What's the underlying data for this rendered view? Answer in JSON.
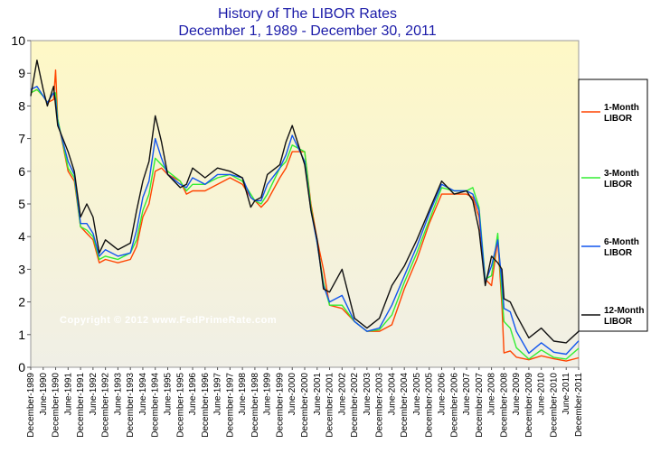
{
  "chart_data": {
    "type": "line",
    "title": "History of The LIBOR Rates",
    "subtitle": "December 1, 1989 - December 30, 2011",
    "watermark": "Copyright © 2012 www.FedPrimeRate.com",
    "ylim": [
      0,
      10
    ],
    "y_ticks": [
      "0",
      "1",
      "2",
      "3",
      "4",
      "5",
      "6",
      "7",
      "8",
      "9",
      "10"
    ],
    "x_ticks": [
      "December-1989",
      "June-1990",
      "December-1990",
      "June-1991",
      "December-1991",
      "June-1992",
      "December-1992",
      "June-1993",
      "December-1993",
      "June-1994",
      "December-1994",
      "June-1995",
      "December-1995",
      "June-1996",
      "December-1996",
      "June-1997",
      "December-1997",
      "June-1998",
      "December-1998",
      "June-1999",
      "December-1999",
      "June-2000",
      "December-2000",
      "June-2001",
      "December-2001",
      "June-2002",
      "December-2002",
      "June-2003",
      "December-2003",
      "June-2004",
      "December-2004",
      "June-2005",
      "December-2005",
      "June-2006",
      "December-2006",
      "June-2007",
      "December-2007",
      "June-2008",
      "December-2008",
      "June-2009",
      "December-2009",
      "June-2010",
      "December-2010",
      "June-2011",
      "December-2011"
    ],
    "grid": false,
    "legend_position": "right",
    "series": [
      {
        "name": "1-Month LIBOR",
        "color": "#ff4400",
        "points": [
          [
            "1989-12",
            8.4
          ],
          [
            "1990-03",
            8.5
          ],
          [
            "1990-06",
            8.3
          ],
          [
            "1990-08",
            8.1
          ],
          [
            "1990-11",
            8.2
          ],
          [
            "1990-12",
            9.1
          ],
          [
            "1991-01",
            7.6
          ],
          [
            "1991-06",
            6.0
          ],
          [
            "1991-09",
            5.7
          ],
          [
            "1991-12",
            4.3
          ],
          [
            "1992-03",
            4.1
          ],
          [
            "1992-06",
            3.9
          ],
          [
            "1992-09",
            3.2
          ],
          [
            "1992-12",
            3.3
          ],
          [
            "1993-06",
            3.2
          ],
          [
            "1993-12",
            3.3
          ],
          [
            "1994-03",
            3.7
          ],
          [
            "1994-06",
            4.6
          ],
          [
            "1994-09",
            5.0
          ],
          [
            "1994-12",
            6.0
          ],
          [
            "1995-03",
            6.1
          ],
          [
            "1995-06",
            5.9
          ],
          [
            "1995-12",
            5.7
          ],
          [
            "1996-03",
            5.3
          ],
          [
            "1996-06",
            5.4
          ],
          [
            "1996-12",
            5.4
          ],
          [
            "1997-06",
            5.6
          ],
          [
            "1997-12",
            5.8
          ],
          [
            "1998-06",
            5.6
          ],
          [
            "1998-10",
            5.2
          ],
          [
            "1998-12",
            5.1
          ],
          [
            "1999-03",
            4.9
          ],
          [
            "1999-06",
            5.1
          ],
          [
            "1999-12",
            5.8
          ],
          [
            "2000-03",
            6.1
          ],
          [
            "2000-06",
            6.6
          ],
          [
            "2000-12",
            6.6
          ],
          [
            "2001-03",
            5.0
          ],
          [
            "2001-06",
            3.9
          ],
          [
            "2001-09",
            3.0
          ],
          [
            "2001-12",
            1.9
          ],
          [
            "2002-06",
            1.8
          ],
          [
            "2002-12",
            1.4
          ],
          [
            "2003-06",
            1.1
          ],
          [
            "2003-12",
            1.1
          ],
          [
            "2004-06",
            1.3
          ],
          [
            "2004-12",
            2.4
          ],
          [
            "2005-06",
            3.3
          ],
          [
            "2005-12",
            4.4
          ],
          [
            "2006-06",
            5.3
          ],
          [
            "2006-12",
            5.3
          ],
          [
            "2007-06",
            5.3
          ],
          [
            "2007-09",
            5.2
          ],
          [
            "2007-12",
            4.6
          ],
          [
            "2008-03",
            2.7
          ],
          [
            "2008-06",
            2.5
          ],
          [
            "2008-09",
            3.9
          ],
          [
            "2008-11",
            1.9
          ],
          [
            "2008-12",
            0.44
          ],
          [
            "2009-03",
            0.5
          ],
          [
            "2009-06",
            0.31
          ],
          [
            "2009-12",
            0.23
          ],
          [
            "2010-06",
            0.35
          ],
          [
            "2010-12",
            0.26
          ],
          [
            "2011-06",
            0.19
          ],
          [
            "2011-12",
            0.29
          ]
        ]
      },
      {
        "name": "3-Month LIBOR",
        "color": "#33ee33",
        "points": [
          [
            "1989-12",
            8.4
          ],
          [
            "1990-03",
            8.5
          ],
          [
            "1990-06",
            8.3
          ],
          [
            "1990-08",
            8.1
          ],
          [
            "1990-11",
            8.4
          ],
          [
            "1990-12",
            8.4
          ],
          [
            "1991-01",
            7.6
          ],
          [
            "1991-06",
            6.1
          ],
          [
            "1991-09",
            5.8
          ],
          [
            "1991-12",
            4.3
          ],
          [
            "1992-03",
            4.2
          ],
          [
            "1992-06",
            4.0
          ],
          [
            "1992-09",
            3.3
          ],
          [
            "1992-12",
            3.4
          ],
          [
            "1993-06",
            3.3
          ],
          [
            "1993-12",
            3.5
          ],
          [
            "1994-03",
            3.9
          ],
          [
            "1994-06",
            4.8
          ],
          [
            "1994-09",
            5.3
          ],
          [
            "1994-12",
            6.4
          ],
          [
            "1995-03",
            6.2
          ],
          [
            "1995-06",
            6.0
          ],
          [
            "1995-12",
            5.7
          ],
          [
            "1996-03",
            5.4
          ],
          [
            "1996-06",
            5.6
          ],
          [
            "1996-12",
            5.6
          ],
          [
            "1997-06",
            5.8
          ],
          [
            "1997-12",
            5.9
          ],
          [
            "1998-06",
            5.7
          ],
          [
            "1998-10",
            5.3
          ],
          [
            "1998-12",
            5.1
          ],
          [
            "1999-03",
            5.0
          ],
          [
            "1999-06",
            5.3
          ],
          [
            "1999-12",
            6.1
          ],
          [
            "2000-03",
            6.3
          ],
          [
            "2000-06",
            6.8
          ],
          [
            "2000-12",
            6.6
          ],
          [
            "2001-03",
            4.9
          ],
          [
            "2001-06",
            3.8
          ],
          [
            "2001-09",
            2.6
          ],
          [
            "2001-12",
            1.9
          ],
          [
            "2002-06",
            1.9
          ],
          [
            "2002-12",
            1.4
          ],
          [
            "2003-06",
            1.1
          ],
          [
            "2003-12",
            1.15
          ],
          [
            "2004-06",
            1.6
          ],
          [
            "2004-12",
            2.6
          ],
          [
            "2005-06",
            3.5
          ],
          [
            "2005-12",
            4.5
          ],
          [
            "2006-06",
            5.5
          ],
          [
            "2006-12",
            5.4
          ],
          [
            "2007-06",
            5.4
          ],
          [
            "2007-09",
            5.5
          ],
          [
            "2007-12",
            4.9
          ],
          [
            "2008-03",
            2.7
          ],
          [
            "2008-06",
            2.8
          ],
          [
            "2008-09",
            4.1
          ],
          [
            "2008-11",
            2.2
          ],
          [
            "2008-12",
            1.4
          ],
          [
            "2009-03",
            1.2
          ],
          [
            "2009-06",
            0.6
          ],
          [
            "2009-12",
            0.25
          ],
          [
            "2010-06",
            0.53
          ],
          [
            "2010-12",
            0.3
          ],
          [
            "2011-06",
            0.25
          ],
          [
            "2011-12",
            0.58
          ]
        ]
      },
      {
        "name": "6-Month LIBOR",
        "color": "#1155ee",
        "points": [
          [
            "1989-12",
            8.5
          ],
          [
            "1990-03",
            8.6
          ],
          [
            "1990-06",
            8.3
          ],
          [
            "1990-08",
            8.1
          ],
          [
            "1990-11",
            8.4
          ],
          [
            "1990-12",
            8.2
          ],
          [
            "1991-01",
            7.5
          ],
          [
            "1991-06",
            6.3
          ],
          [
            "1991-09",
            5.9
          ],
          [
            "1991-12",
            4.4
          ],
          [
            "1992-03",
            4.4
          ],
          [
            "1992-06",
            4.1
          ],
          [
            "1992-09",
            3.4
          ],
          [
            "1992-12",
            3.6
          ],
          [
            "1993-06",
            3.4
          ],
          [
            "1993-12",
            3.5
          ],
          [
            "1994-03",
            4.2
          ],
          [
            "1994-06",
            5.2
          ],
          [
            "1994-09",
            5.7
          ],
          [
            "1994-12",
            7.0
          ],
          [
            "1995-03",
            6.4
          ],
          [
            "1995-06",
            5.9
          ],
          [
            "1995-12",
            5.6
          ],
          [
            "1996-03",
            5.5
          ],
          [
            "1996-06",
            5.8
          ],
          [
            "1996-12",
            5.6
          ],
          [
            "1997-06",
            5.9
          ],
          [
            "1997-12",
            5.9
          ],
          [
            "1998-06",
            5.8
          ],
          [
            "1998-10",
            5.2
          ],
          [
            "1998-12",
            5.1
          ],
          [
            "1999-03",
            5.1
          ],
          [
            "1999-06",
            5.6
          ],
          [
            "1999-12",
            6.1
          ],
          [
            "2000-03",
            6.5
          ],
          [
            "2000-06",
            7.1
          ],
          [
            "2000-12",
            6.3
          ],
          [
            "2001-03",
            4.8
          ],
          [
            "2001-06",
            3.8
          ],
          [
            "2001-09",
            2.5
          ],
          [
            "2001-12",
            2.0
          ],
          [
            "2002-06",
            2.2
          ],
          [
            "2002-12",
            1.4
          ],
          [
            "2003-06",
            1.1
          ],
          [
            "2003-12",
            1.2
          ],
          [
            "2004-06",
            1.9
          ],
          [
            "2004-12",
            2.8
          ],
          [
            "2005-06",
            3.7
          ],
          [
            "2005-12",
            4.7
          ],
          [
            "2006-06",
            5.6
          ],
          [
            "2006-12",
            5.4
          ],
          [
            "2007-06",
            5.4
          ],
          [
            "2007-09",
            5.3
          ],
          [
            "2007-12",
            4.8
          ],
          [
            "2008-03",
            2.6
          ],
          [
            "2008-06",
            3.1
          ],
          [
            "2008-09",
            3.9
          ],
          [
            "2008-11",
            2.6
          ],
          [
            "2008-12",
            1.8
          ],
          [
            "2009-03",
            1.7
          ],
          [
            "2009-06",
            1.1
          ],
          [
            "2009-12",
            0.43
          ],
          [
            "2010-06",
            0.75
          ],
          [
            "2010-12",
            0.46
          ],
          [
            "2011-06",
            0.4
          ],
          [
            "2011-12",
            0.81
          ]
        ]
      },
      {
        "name": "12-Month LIBOR",
        "color": "#111111",
        "points": [
          [
            "1989-12",
            8.3
          ],
          [
            "1990-03",
            9.4
          ],
          [
            "1990-06",
            8.5
          ],
          [
            "1990-08",
            8.0
          ],
          [
            "1990-11",
            8.6
          ],
          [
            "1990-12",
            8.0
          ],
          [
            "1991-01",
            7.4
          ],
          [
            "1991-06",
            6.6
          ],
          [
            "1991-09",
            6.0
          ],
          [
            "1991-12",
            4.6
          ],
          [
            "1992-03",
            5.0
          ],
          [
            "1992-06",
            4.6
          ],
          [
            "1992-09",
            3.5
          ],
          [
            "1992-12",
            3.9
          ],
          [
            "1993-06",
            3.6
          ],
          [
            "1993-12",
            3.8
          ],
          [
            "1994-03",
            4.8
          ],
          [
            "1994-06",
            5.7
          ],
          [
            "1994-09",
            6.3
          ],
          [
            "1994-12",
            7.7
          ],
          [
            "1995-03",
            6.9
          ],
          [
            "1995-06",
            5.9
          ],
          [
            "1995-12",
            5.5
          ],
          [
            "1996-03",
            5.6
          ],
          [
            "1996-06",
            6.1
          ],
          [
            "1996-12",
            5.8
          ],
          [
            "1997-06",
            6.1
          ],
          [
            "1997-12",
            6.0
          ],
          [
            "1998-06",
            5.8
          ],
          [
            "1998-10",
            4.9
          ],
          [
            "1998-12",
            5.1
          ],
          [
            "1999-03",
            5.2
          ],
          [
            "1999-06",
            5.9
          ],
          [
            "1999-12",
            6.2
          ],
          [
            "2000-03",
            6.9
          ],
          [
            "2000-06",
            7.4
          ],
          [
            "2000-12",
            6.2
          ],
          [
            "2001-03",
            4.8
          ],
          [
            "2001-06",
            3.9
          ],
          [
            "2001-09",
            2.4
          ],
          [
            "2001-12",
            2.3
          ],
          [
            "2002-06",
            3.0
          ],
          [
            "2002-12",
            1.5
          ],
          [
            "2003-06",
            1.2
          ],
          [
            "2003-12",
            1.5
          ],
          [
            "2004-06",
            2.5
          ],
          [
            "2004-12",
            3.1
          ],
          [
            "2005-06",
            3.9
          ],
          [
            "2005-12",
            4.8
          ],
          [
            "2006-06",
            5.7
          ],
          [
            "2006-12",
            5.3
          ],
          [
            "2007-06",
            5.4
          ],
          [
            "2007-09",
            5.1
          ],
          [
            "2007-12",
            4.2
          ],
          [
            "2008-03",
            2.5
          ],
          [
            "2008-06",
            3.4
          ],
          [
            "2008-09",
            3.2
          ],
          [
            "2008-11",
            3.0
          ],
          [
            "2008-12",
            2.1
          ],
          [
            "2009-03",
            2.0
          ],
          [
            "2009-06",
            1.6
          ],
          [
            "2009-12",
            0.9
          ],
          [
            "2010-06",
            1.2
          ],
          [
            "2010-12",
            0.8
          ],
          [
            "2011-06",
            0.75
          ],
          [
            "2011-12",
            1.1
          ]
        ]
      }
    ]
  }
}
